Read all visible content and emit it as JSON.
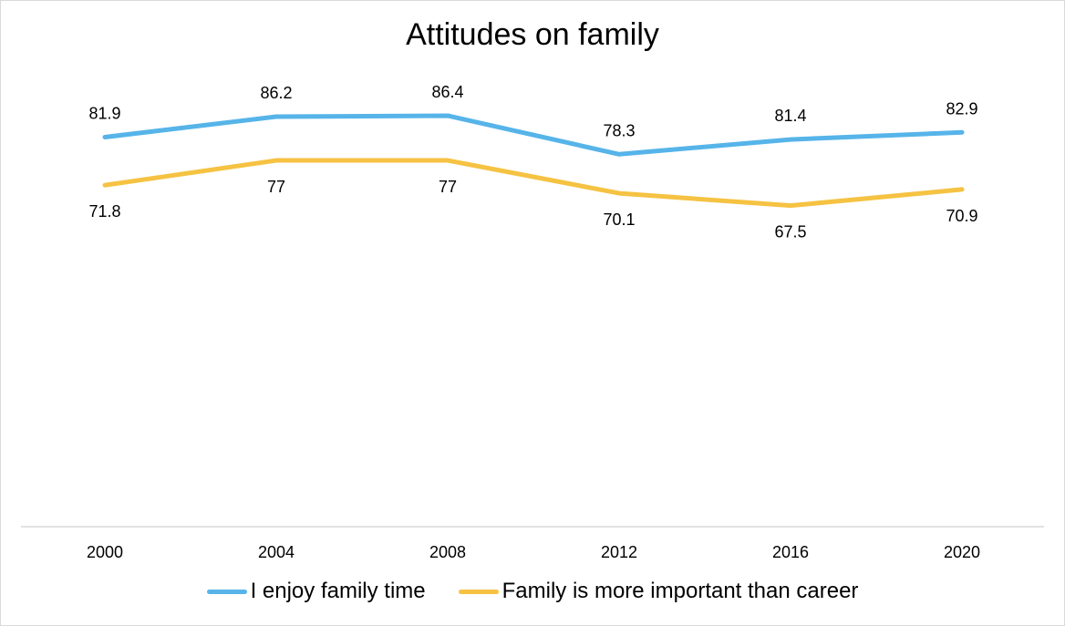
{
  "chart_data": {
    "type": "line",
    "title": "Attitudes on family",
    "categories": [
      "2000",
      "2004",
      "2008",
      "2012",
      "2016",
      "2020"
    ],
    "series": [
      {
        "name": "I enjoy family time",
        "values": [
          81.9,
          86.2,
          86.4,
          78.3,
          81.4,
          82.9
        ],
        "color": "#56b4e9",
        "labels": "above"
      },
      {
        "name": "Family is more important than career",
        "values": [
          71.8,
          77,
          77,
          70.1,
          67.5,
          70.9
        ],
        "color": "#f5c242",
        "labels": "below"
      }
    ],
    "xlabel": "",
    "ylabel": "",
    "ylim": [
      0,
      100
    ],
    "grid": false,
    "legend_position": "bottom"
  }
}
